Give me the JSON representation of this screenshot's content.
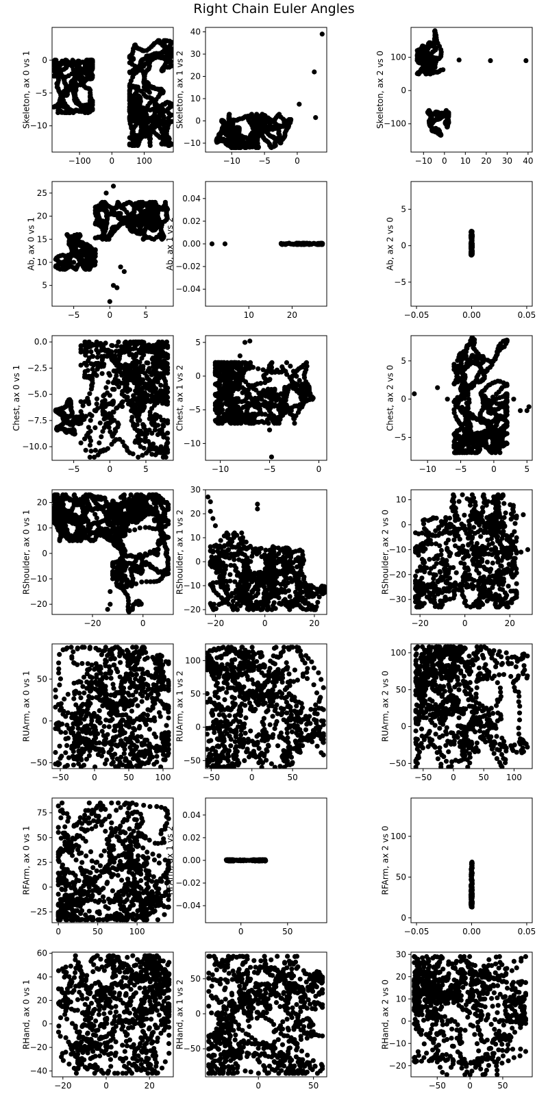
{
  "figure": {
    "title": "Right Chain Euler Angles"
  },
  "chart_data": [
    {
      "type": "scatter",
      "ylabel": "Skeleton, ax 0 vs 1",
      "xlim": [
        -185,
        190
      ],
      "ylim": [
        -14,
        5
      ],
      "xticks": [
        -100,
        0,
        100
      ],
      "xtick_labels": [
        "−100",
        "0",
        "100"
      ],
      "yticks": [
        -10,
        -5,
        0
      ],
      "ytick_labels": [
        "−10",
        "−5",
        "0"
      ],
      "clusters": [
        {
          "x": [
            -180,
            -60
          ],
          "y": [
            -8,
            0
          ]
        },
        {
          "x": [
            55,
            185
          ],
          "y": [
            -13,
            3
          ]
        }
      ],
      "points": []
    },
    {
      "type": "scatter",
      "ylabel": "Skeleton, ax 1 vs 2",
      "xlim": [
        -14,
        4.5
      ],
      "ylim": [
        -14,
        42
      ],
      "xticks": [
        -10,
        -5,
        0
      ],
      "xtick_labels": [
        "−10",
        "−5",
        "0"
      ],
      "yticks": [
        -10,
        0,
        10,
        20,
        30,
        40
      ],
      "ytick_labels": [
        "−10",
        "0",
        "10",
        "20",
        "30",
        "40"
      ],
      "clusters": [
        {
          "x": [
            -13,
            3.5
          ],
          "y": [
            -12,
            3
          ]
        }
      ],
      "points": [
        [
          3.8,
          39
        ],
        [
          2.6,
          22
        ],
        [
          0.3,
          7.5
        ],
        [
          2.8,
          1.5
        ]
      ]
    },
    {
      "type": "scatter",
      "ylabel": "Skeleton, ax 2 vs 0",
      "xlim": [
        -16,
        42
      ],
      "ylim": [
        -185,
        190
      ],
      "xticks": [
        -10,
        0,
        10,
        20,
        30,
        40
      ],
      "xtick_labels": [
        "−10",
        "0",
        "10",
        "20",
        "30",
        "40"
      ],
      "yticks": [
        -100,
        0,
        100
      ],
      "ytick_labels": [
        "−100",
        "0",
        "100"
      ],
      "clusters": [
        {
          "x": [
            -13,
            1
          ],
          "y": [
            50,
            180
          ]
        },
        {
          "x": [
            -8,
            2
          ],
          "y": [
            -180,
            -60
          ]
        }
      ],
      "points": [
        [
          7,
          92
        ],
        [
          22,
          90
        ],
        [
          39,
          90
        ]
      ]
    },
    {
      "type": "scatter",
      "ylabel": "Ab, ax 0 vs 1",
      "xlim": [
        -8,
        8.8
      ],
      "ylim": [
        0.5,
        27.5
      ],
      "xticks": [
        -5,
        0,
        5
      ],
      "xtick_labels": [
        "−5",
        "0",
        "5"
      ],
      "yticks": [
        5,
        10,
        15,
        20,
        25
      ],
      "ytick_labels": [
        "5",
        "10",
        "15",
        "20",
        "25"
      ],
      "clusters": [
        {
          "x": [
            -2,
            8
          ],
          "y": [
            15,
            23
          ]
        },
        {
          "x": [
            -7.5,
            -2
          ],
          "y": [
            8.5,
            16
          ]
        }
      ],
      "points": [
        [
          0,
          1.5
        ],
        [
          0.5,
          5
        ],
        [
          1,
          4.5
        ],
        [
          1.5,
          9
        ],
        [
          2,
          8
        ],
        [
          -5,
          10
        ],
        [
          -3,
          13
        ],
        [
          -1,
          15
        ],
        [
          -0.5,
          25
        ],
        [
          0.5,
          26.5
        ]
      ]
    },
    {
      "type": "scatter",
      "ylabel": "Ab, ax 1 vs 2",
      "xlim": [
        0,
        28
      ],
      "ylim": [
        -0.055,
        0.055
      ],
      "xticks": [
        10,
        20
      ],
      "xtick_labels": [
        "10",
        "20"
      ],
      "yticks": [
        -0.04,
        -0.02,
        0,
        0.02,
        0.04
      ],
      "ytick_labels": [
        "−0.04",
        "−0.02",
        "0.00",
        "0.02",
        "0.04"
      ],
      "clusters": [
        {
          "x": [
            8,
            27
          ],
          "y": [
            -0.0004,
            0.0004
          ]
        }
      ],
      "points": [
        [
          1.5,
          0
        ],
        [
          4.5,
          0
        ]
      ]
    },
    {
      "type": "scatter",
      "ylabel": "Ab, ax 2 vs 0",
      "xlim": [
        -0.055,
        0.055
      ],
      "ylim": [
        -8.3,
        8.8
      ],
      "xticks": [
        -0.05,
        0,
        0.05
      ],
      "xtick_labels": [
        "−0.05",
        "0.00",
        "0.05"
      ],
      "yticks": [
        -5,
        0,
        5
      ],
      "ytick_labels": [
        "−5",
        "0",
        "5"
      ],
      "clusters": [
        {
          "x": [
            -0.0006,
            0.0006
          ],
          "y": [
            -7.5,
            8.2
          ]
        }
      ],
      "points": []
    },
    {
      "type": "scatter",
      "ylabel": "Chest, ax 0 vs 1",
      "xlim": [
        -8,
        8.8
      ],
      "ylim": [
        -11.3,
        0.6
      ],
      "xticks": [
        -5,
        0,
        5
      ],
      "xtick_labels": [
        "−5",
        "0",
        "5"
      ],
      "yticks": [
        -10,
        -7.5,
        -5,
        -2.5,
        0
      ],
      "ytick_labels": [
        "−10.0",
        "−7.5",
        "−5.0",
        "−2.5",
        "0.0"
      ],
      "clusters": [
        {
          "x": [
            -4,
            8
          ],
          "y": [
            -11,
            0
          ]
        },
        {
          "x": [
            -7.5,
            -4
          ],
          "y": [
            -9,
            -5.5
          ]
        }
      ],
      "points": []
    },
    {
      "type": "scatter",
      "ylabel": "Chest, ax 1 vs 2",
      "xlim": [
        -11.5,
        0.8
      ],
      "ylim": [
        -12.5,
        6
      ],
      "xticks": [
        -10,
        -5,
        0
      ],
      "xtick_labels": [
        "−10",
        "−5",
        "0"
      ],
      "yticks": [
        -10,
        -5,
        0,
        5
      ],
      "ytick_labels": [
        "−10",
        "−5",
        "0",
        "5"
      ],
      "clusters": [
        {
          "x": [
            -10.5,
            0.3
          ],
          "y": [
            -7,
            2
          ]
        }
      ],
      "points": [
        [
          -7.5,
          5
        ],
        [
          -7,
          5.2
        ],
        [
          -8,
          3
        ],
        [
          -5,
          -8
        ],
        [
          -4.8,
          -12
        ],
        [
          -4.5,
          -7
        ]
      ]
    },
    {
      "type": "scatter",
      "ylabel": "Chest, ax 2 vs 0",
      "xlim": [
        -12.5,
        5.8
      ],
      "ylim": [
        -8,
        8.3
      ],
      "xticks": [
        -10,
        -5,
        0,
        5
      ],
      "xtick_labels": [
        "−10",
        "−5",
        "0",
        "5"
      ],
      "yticks": [
        -5,
        0,
        5
      ],
      "ytick_labels": [
        "−5",
        "0",
        "5"
      ],
      "clusters": [
        {
          "x": [
            -6,
            2
          ],
          "y": [
            -7,
            8
          ]
        }
      ],
      "points": [
        [
          -12,
          0.7
        ],
        [
          -8.5,
          1.5
        ],
        [
          -7,
          0
        ],
        [
          3,
          0
        ],
        [
          4,
          -1.5
        ],
        [
          5.3,
          -1
        ],
        [
          5,
          -1.5
        ]
      ]
    },
    {
      "type": "scatter",
      "ylabel": "RShoulder, ax 0 vs 1",
      "xlim": [
        -36,
        12
      ],
      "ylim": [
        -24,
        25
      ],
      "xticks": [
        -20,
        0
      ],
      "xtick_labels": [
        "−20",
        "0"
      ],
      "yticks": [
        -20,
        -10,
        0,
        10,
        20
      ],
      "ytick_labels": [
        "−20",
        "−10",
        "0",
        "10",
        "20"
      ],
      "clusters": [
        {
          "x": [
            -12,
            10
          ],
          "y": [
            -23,
            23
          ]
        },
        {
          "x": [
            -35,
            -12
          ],
          "y": [
            5,
            23
          ]
        }
      ],
      "points": [
        [
          -14,
          -22
        ],
        [
          -13,
          -15
        ],
        [
          -12,
          -10
        ],
        [
          -10,
          -8
        ],
        [
          -9,
          -5
        ],
        [
          -13,
          -20
        ]
      ]
    },
    {
      "type": "scatter",
      "ylabel": "RShoulder, ax 1 vs 2",
      "xlim": [
        -24,
        25
      ],
      "ylim": [
        -22,
        30
      ],
      "xticks": [
        -20,
        0,
        20
      ],
      "xtick_labels": [
        "−20",
        "0",
        "20"
      ],
      "yticks": [
        -20,
        -10,
        0,
        10,
        20,
        30
      ],
      "ytick_labels": [
        "−20",
        "−10",
        "0",
        "10",
        "20",
        "30"
      ],
      "clusters": [
        {
          "x": [
            -22,
            24
          ],
          "y": [
            -20,
            12
          ]
        }
      ],
      "points": [
        [
          -23,
          27
        ],
        [
          -22,
          25
        ],
        [
          -22,
          21
        ],
        [
          -21,
          18
        ],
        [
          -20,
          15
        ],
        [
          -15,
          10
        ],
        [
          -3,
          24
        ],
        [
          -3,
          22
        ]
      ]
    },
    {
      "type": "scatter",
      "ylabel": "RShoulder, ax 2 vs 0",
      "xlim": [
        -24,
        30
      ],
      "ylim": [
        -36,
        14
      ],
      "xticks": [
        -20,
        0,
        20
      ],
      "xtick_labels": [
        "−20",
        "0",
        "20"
      ],
      "yticks": [
        -30,
        -20,
        -10,
        0,
        10
      ],
      "ytick_labels": [
        "−30",
        "−20",
        "−10",
        "0",
        "10"
      ],
      "clusters": [
        {
          "x": [
            -22,
            23
          ],
          "y": [
            -33,
            12
          ]
        }
      ],
      "points": [
        [
          22,
          3
        ],
        [
          26,
          4
        ],
        [
          28,
          -10
        ],
        [
          25,
          -11
        ],
        [
          20,
          -12
        ],
        [
          10,
          -15
        ],
        [
          5,
          -16
        ]
      ]
    },
    {
      "type": "scatter",
      "ylabel": "RUArm, ax 0 vs 1",
      "xlim": [
        -62,
        115
      ],
      "ylim": [
        -57,
        92
      ],
      "xticks": [
        -50,
        0,
        50,
        100
      ],
      "xtick_labels": [
        "−50",
        "0",
        "50",
        "100"
      ],
      "yticks": [
        -50,
        0,
        50
      ],
      "ytick_labels": [
        "−50",
        "0",
        "50"
      ],
      "clusters": [
        {
          "x": [
            -57,
            108
          ],
          "y": [
            -55,
            88
          ]
        }
      ],
      "points": []
    },
    {
      "type": "scatter",
      "ylabel": "RUArm, ax 1 vs 2",
      "xlim": [
        -57,
        92
      ],
      "ylim": [
        -62,
        125
      ],
      "xticks": [
        -50,
        0,
        50
      ],
      "xtick_labels": [
        "−50",
        "0",
        "50"
      ],
      "yticks": [
        -50,
        0,
        50,
        100
      ],
      "ytick_labels": [
        "−50",
        "0",
        "50",
        "100"
      ],
      "clusters": [
        {
          "x": [
            -55,
            88
          ],
          "y": [
            -60,
            120
          ]
        }
      ],
      "points": []
    },
    {
      "type": "scatter",
      "ylabel": "RUArm, ax 2 vs 0",
      "xlim": [
        -70,
        130
      ],
      "ylim": [
        -57,
        112
      ],
      "xticks": [
        -50,
        0,
        50,
        100
      ],
      "xtick_labels": [
        "−50",
        "0",
        "50",
        "100"
      ],
      "yticks": [
        -50,
        0,
        50,
        100
      ],
      "ytick_labels": [
        "−50",
        "0",
        "50",
        "100"
      ],
      "clusters": [
        {
          "x": [
            -62,
            122
          ],
          "y": [
            -55,
            108
          ]
        }
      ],
      "points": []
    },
    {
      "type": "scatter",
      "ylabel": "RFArm, ax 0 vs 1",
      "xlim": [
        -8,
        146
      ],
      "ylim": [
        -36,
        90
      ],
      "xticks": [
        0,
        50,
        100
      ],
      "xtick_labels": [
        "0",
        "50",
        "100"
      ],
      "yticks": [
        -25,
        0,
        25,
        50,
        75
      ],
      "ytick_labels": [
        "−25",
        "0",
        "25",
        "50",
        "75"
      ],
      "clusters": [
        {
          "x": [
            0,
            140
          ],
          "y": [
            -33,
            85
          ]
        }
      ],
      "points": []
    },
    {
      "type": "scatter",
      "ylabel": "RFArm, ax 1 vs 2",
      "xlim": [
        -38,
        92
      ],
      "ylim": [
        -0.055,
        0.055
      ],
      "xticks": [
        0,
        50
      ],
      "xtick_labels": [
        "0",
        "50"
      ],
      "yticks": [
        -0.04,
        -0.02,
        0,
        0.02,
        0.04
      ],
      "ytick_labels": [
        "−0.04",
        "−0.02",
        "0.00",
        "0.02",
        "0.04"
      ],
      "clusters": [
        {
          "x": [
            -33,
            85
          ],
          "y": [
            -0.0004,
            0.0004
          ]
        }
      ],
      "points": []
    },
    {
      "type": "scatter",
      "ylabel": "RFArm, ax 2 vs 0",
      "xlim": [
        -0.055,
        0.055
      ],
      "ylim": [
        -6,
        147
      ],
      "xticks": [
        -0.05,
        0,
        0.05
      ],
      "xtick_labels": [
        "−0.05",
        "0.00",
        "0.05"
      ],
      "yticks": [
        0,
        50,
        100
      ],
      "ytick_labels": [
        "0",
        "50",
        "100"
      ],
      "clusters": [
        {
          "x": [
            -0.0006,
            0.0006
          ],
          "y": [
            -2,
            140
          ]
        }
      ],
      "points": []
    },
    {
      "type": "scatter",
      "ylabel": "RHand, ax 0 vs 1",
      "xlim": [
        -25,
        31
      ],
      "ylim": [
        -45,
        61
      ],
      "xticks": [
        -20,
        0,
        20
      ],
      "xtick_labels": [
        "−20",
        "0",
        "20"
      ],
      "yticks": [
        -40,
        -20,
        0,
        20,
        40,
        60
      ],
      "ytick_labels": [
        "−40",
        "−20",
        "0",
        "20",
        "40",
        "60"
      ],
      "clusters": [
        {
          "x": [
            -22,
            29
          ],
          "y": [
            -42,
            58
          ]
        }
      ],
      "points": []
    },
    {
      "type": "scatter",
      "ylabel": "RHand, ax 1 vs 2",
      "xlim": [
        -48,
        62
      ],
      "ylim": [
        -90,
        88
      ],
      "xticks": [
        0,
        50
      ],
      "xtick_labels": [
        "0",
        "50"
      ],
      "yticks": [
        -50,
        0,
        50
      ],
      "ytick_labels": [
        "−50",
        "0",
        "50"
      ],
      "clusters": [
        {
          "x": [
            -45,
            58
          ],
          "y": [
            -85,
            82
          ]
        }
      ],
      "points": []
    },
    {
      "type": "scatter",
      "ylabel": "RHand, ax 2 vs 0",
      "xlim": [
        -90,
        95
      ],
      "ylim": [
        -25,
        31
      ],
      "xticks": [
        -50,
        0,
        50
      ],
      "xtick_labels": [
        "−50",
        "0",
        "50"
      ],
      "yticks": [
        -20,
        -10,
        0,
        10,
        20,
        30
      ],
      "ytick_labels": [
        "−20",
        "−10",
        "0",
        "10",
        "20",
        "30"
      ],
      "clusters": [
        {
          "x": [
            -85,
            85
          ],
          "y": [
            -24,
            29
          ]
        }
      ],
      "points": []
    }
  ]
}
